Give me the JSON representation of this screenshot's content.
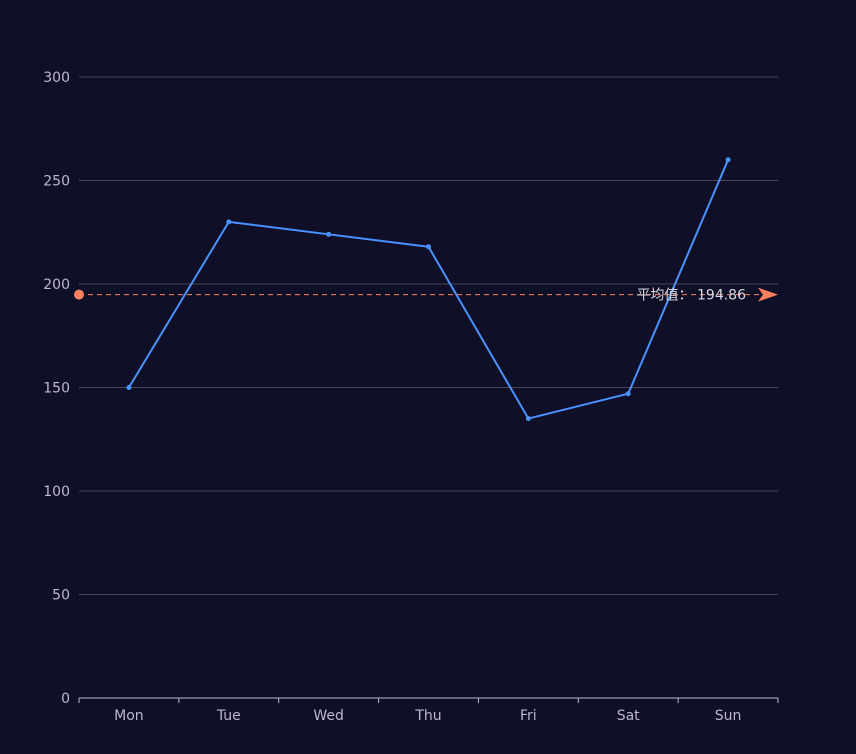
{
  "chart_data": {
    "type": "line",
    "categories": [
      "Mon",
      "Tue",
      "Wed",
      "Thu",
      "Fri",
      "Sat",
      "Sun"
    ],
    "values": [
      150,
      230,
      224,
      218,
      135,
      147,
      260
    ],
    "ylim": [
      0,
      300
    ],
    "yticks": [
      "0",
      "50",
      "100",
      "150",
      "200",
      "250",
      "300"
    ],
    "grid": true,
    "series_color": "#4992ff",
    "mark_line": {
      "type": "average",
      "value": 194.86,
      "label": "平均值： 194.86",
      "color": "#ff7f61"
    }
  }
}
